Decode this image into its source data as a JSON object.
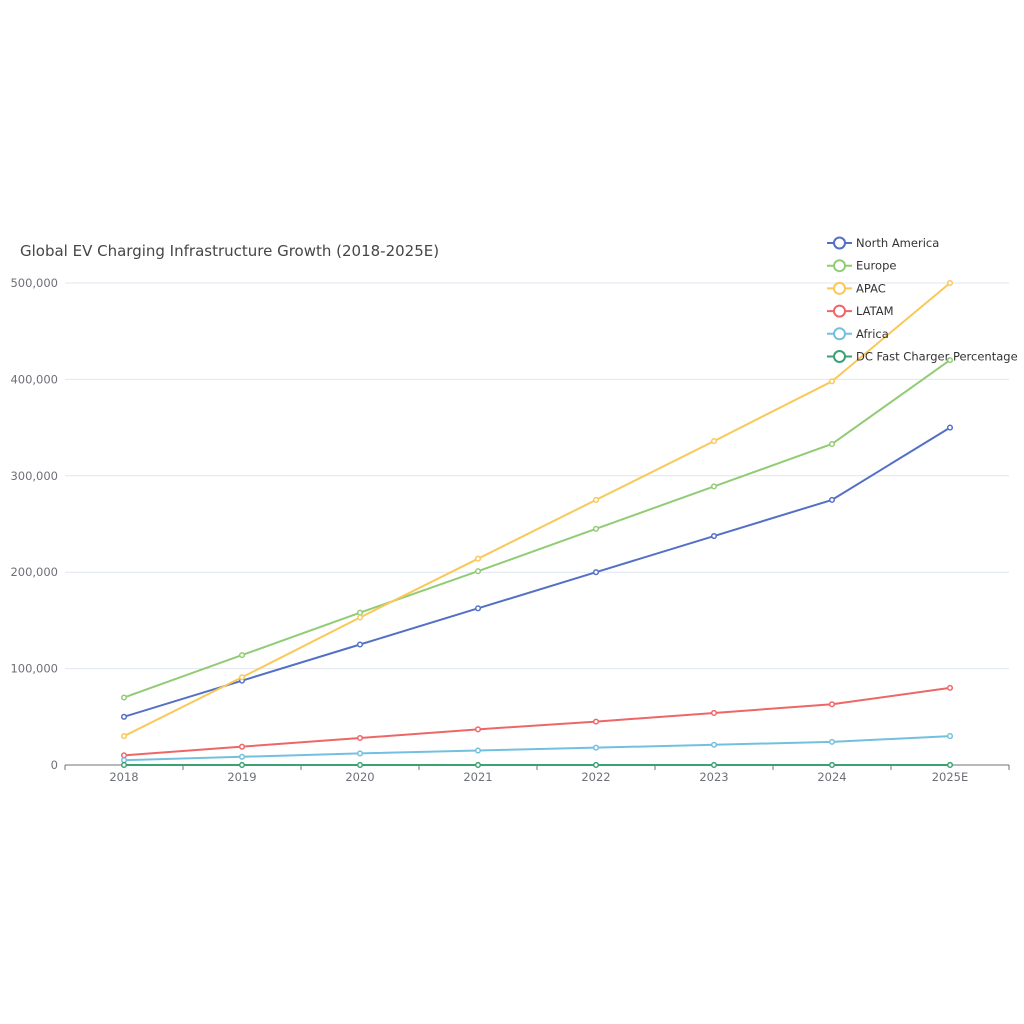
{
  "chart_data": {
    "type": "line",
    "title": "Global EV Charging Infrastructure Growth (2018-2025E)",
    "xlabel": "",
    "ylabel": "",
    "categories": [
      "2018",
      "2019",
      "2020",
      "2021",
      "2022",
      "2023",
      "2024",
      "2025E"
    ],
    "y_ticks": [
      "0",
      "100,000",
      "200,000",
      "300,000",
      "400,000",
      "500,000"
    ],
    "ylim": [
      0,
      500000
    ],
    "grid": true,
    "legend_position": "top-right",
    "series": [
      {
        "name": "North America",
        "color": "#5470c6",
        "values": [
          50000,
          87500,
          125000,
          162500,
          200000,
          237500,
          275000,
          350000
        ]
      },
      {
        "name": "Europe",
        "color": "#91cc75",
        "values": [
          70000,
          114000,
          158000,
          201000,
          245000,
          289000,
          333000,
          420000
        ]
      },
      {
        "name": "APAC",
        "color": "#fac858",
        "values": [
          30000,
          91000,
          153000,
          214000,
          275000,
          336000,
          398000,
          500000
        ]
      },
      {
        "name": "LATAM",
        "color": "#ee6666",
        "values": [
          10000,
          19000,
          28000,
          37000,
          45000,
          54000,
          63000,
          80000
        ]
      },
      {
        "name": "Africa",
        "color": "#73c0de",
        "values": [
          5000,
          8500,
          12000,
          15000,
          18000,
          21000,
          24000,
          30000
        ]
      },
      {
        "name": "DC Fast Charger Percentage",
        "color": "#3ba272",
        "values": [
          15,
          18,
          21,
          24,
          27,
          30,
          33,
          35
        ]
      }
    ]
  }
}
